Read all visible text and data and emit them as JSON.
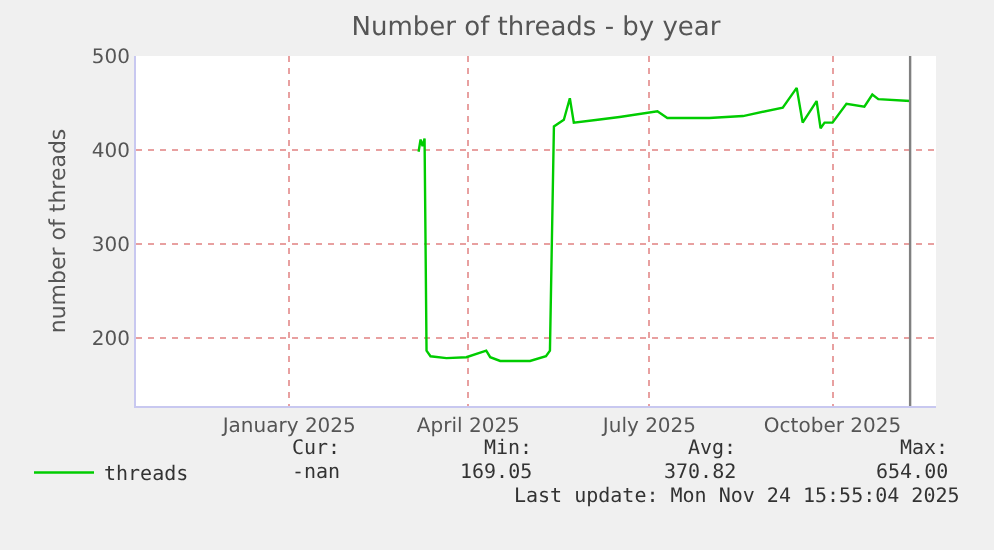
{
  "chart_data": {
    "type": "line",
    "title": "Number of threads - by year",
    "ylabel": "number of threads",
    "x": [
      "2025-03-22",
      "2025-03-23",
      "2025-03-24",
      "2025-03-25",
      "2025-03-26",
      "2025-03-28",
      "2025-04-05",
      "2025-04-15",
      "2025-04-25",
      "2025-04-27",
      "2025-05-02",
      "2025-05-17",
      "2025-05-25",
      "2025-05-27",
      "2025-05-29",
      "2025-06-03",
      "2025-06-06",
      "2025-06-08",
      "2025-06-20",
      "2025-07-01",
      "2025-07-20",
      "2025-07-25",
      "2025-08-15",
      "2025-09-01",
      "2025-09-21",
      "2025-09-28",
      "2025-10-01",
      "2025-10-08",
      "2025-10-10",
      "2025-10-12",
      "2025-10-16",
      "2025-10-23",
      "2025-11-01",
      "2025-11-05",
      "2025-11-08",
      "2025-11-24"
    ],
    "series": [
      {
        "name": "threads",
        "color": "#00cc00",
        "values": [
          398,
          411,
          404,
          412,
          186,
          180,
          178,
          179,
          186,
          179,
          175,
          175,
          180,
          186,
          425,
          432,
          455,
          429,
          432,
          435,
          441,
          434,
          434,
          436,
          445,
          466,
          429,
          452,
          423,
          429,
          429,
          449,
          446,
          459,
          454,
          452
        ]
      }
    ],
    "xlim": [
      "2024-10-31",
      "2025-12-07"
    ],
    "xticks": [
      {
        "value": "2025-01-16",
        "label": "January 2025"
      },
      {
        "value": "2025-04-16",
        "label": "April 2025"
      },
      {
        "value": "2025-07-16",
        "label": "July 2025"
      },
      {
        "value": "2025-10-16",
        "label": "October 2025"
      }
    ],
    "ylim": [
      127,
      500
    ],
    "yticks": [
      200,
      300,
      400,
      500
    ],
    "ref_lines": [
      {
        "axis": "x",
        "value": "2025-11-24",
        "color": "#808080"
      }
    ],
    "grid": true,
    "legend": "bottom left",
    "marker": "none",
    "line_style": "solid",
    "annotations": [
      "Cur:",
      "Min:",
      "Avg:",
      "Max:",
      "-nan",
      "169.05",
      "370.82",
      "654.00",
      "Last update: Mon Nov 24 15:55:04 2025"
    ]
  }
}
